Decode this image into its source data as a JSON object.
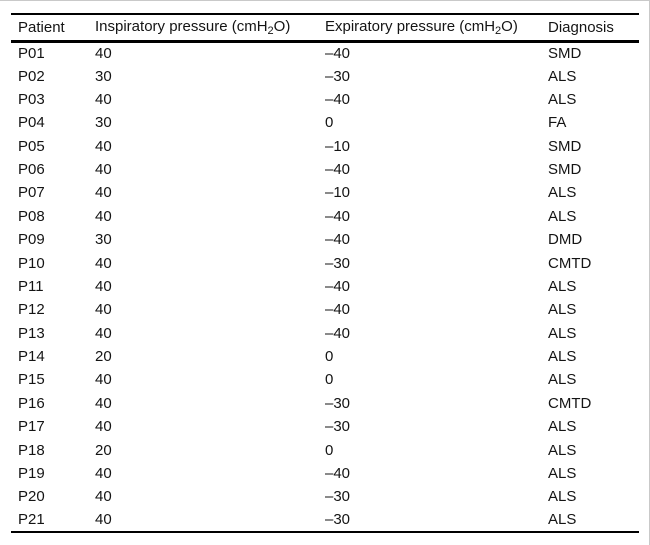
{
  "page": {
    "background_color": "#ffffff",
    "text_color": "#141414",
    "rule_color": "#000000"
  },
  "table": {
    "columns": [
      {
        "key": "patient",
        "label": "Patient"
      },
      {
        "key": "inspiratory",
        "label_pre": "Inspiratory pressure (cmH",
        "label_sub": "2",
        "label_post": "O)"
      },
      {
        "key": "expiratory",
        "label_pre": "Expiratory pressure (cmH",
        "label_sub": "2",
        "label_post": "O)"
      },
      {
        "key": "diagnosis",
        "label": "Diagnosis"
      }
    ],
    "rows": [
      {
        "patient": "P01",
        "inspiratory": "40",
        "expiratory": "–40",
        "diagnosis": "SMD"
      },
      {
        "patient": "P02",
        "inspiratory": "30",
        "expiratory": "–30",
        "diagnosis": "ALS"
      },
      {
        "patient": "P03",
        "inspiratory": "40",
        "expiratory": "–40",
        "diagnosis": "ALS"
      },
      {
        "patient": "P04",
        "inspiratory": "30",
        "expiratory": "0",
        "diagnosis": "FA"
      },
      {
        "patient": "P05",
        "inspiratory": "40",
        "expiratory": "–10",
        "diagnosis": "SMD"
      },
      {
        "patient": "P06",
        "inspiratory": "40",
        "expiratory": "–40",
        "diagnosis": "SMD"
      },
      {
        "patient": "P07",
        "inspiratory": "40",
        "expiratory": "–10",
        "diagnosis": "ALS"
      },
      {
        "patient": "P08",
        "inspiratory": "40",
        "expiratory": "–40",
        "diagnosis": "ALS"
      },
      {
        "patient": "P09",
        "inspiratory": "30",
        "expiratory": "–40",
        "diagnosis": "DMD"
      },
      {
        "patient": "P10",
        "inspiratory": "40",
        "expiratory": "–30",
        "diagnosis": "CMTD"
      },
      {
        "patient": "P11",
        "inspiratory": "40",
        "expiratory": "–40",
        "diagnosis": "ALS"
      },
      {
        "patient": "P12",
        "inspiratory": "40",
        "expiratory": "–40",
        "diagnosis": "ALS"
      },
      {
        "patient": "P13",
        "inspiratory": "40",
        "expiratory": "–40",
        "diagnosis": "ALS"
      },
      {
        "patient": "P14",
        "inspiratory": "20",
        "expiratory": "0",
        "diagnosis": "ALS"
      },
      {
        "patient": "P15",
        "inspiratory": "40",
        "expiratory": "0",
        "diagnosis": "ALS"
      },
      {
        "patient": "P16",
        "inspiratory": "40",
        "expiratory": "–30",
        "diagnosis": "CMTD"
      },
      {
        "patient": "P17",
        "inspiratory": "40",
        "expiratory": "–30",
        "diagnosis": "ALS"
      },
      {
        "patient": "P18",
        "inspiratory": "20",
        "expiratory": "0",
        "diagnosis": "ALS"
      },
      {
        "patient": "P19",
        "inspiratory": "40",
        "expiratory": "–40",
        "diagnosis": "ALS"
      },
      {
        "patient": "P20",
        "inspiratory": "40",
        "expiratory": "–30",
        "diagnosis": "ALS"
      },
      {
        "patient": "P21",
        "inspiratory": "40",
        "expiratory": "–30",
        "diagnosis": "ALS"
      }
    ]
  }
}
